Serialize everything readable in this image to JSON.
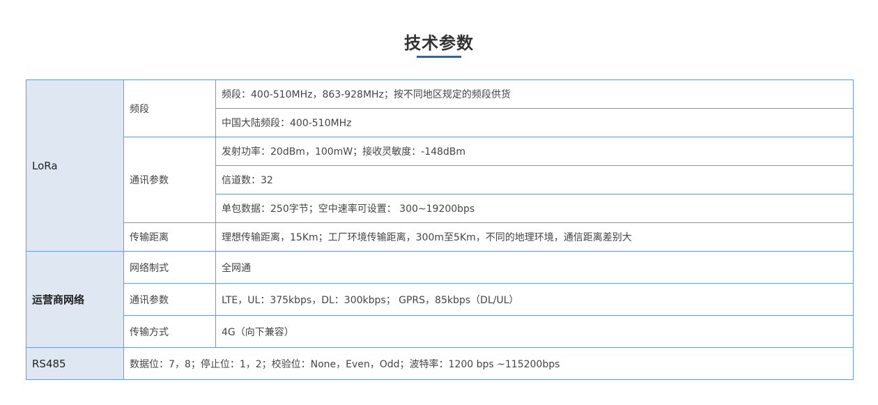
{
  "title": "技术参数",
  "table": {
    "lora": {
      "category": "LoRa",
      "band_label": "频段",
      "band_rows": [
        "频段：400-510MHz，863-928MHz；按不同地区规定的频段供货",
        "中国大陆频段：400-510MHz"
      ],
      "comm_label": "通讯参数",
      "comm_rows": [
        "发射功率：20dBm，100mW；接收灵敏度：-148dBm",
        "信道数：32",
        "单包数据：250字节；空中速率可设置： 300~19200bps"
      ],
      "distance_label": "传输距离",
      "distance_value": "理想传输距离，15Km；工厂环境传输距离，300m至5Km，不同的地理环境，通信距离差别大"
    },
    "carrier": {
      "category": "运营商网络",
      "rows": [
        {
          "label": "网络制式",
          "value": "全网通"
        },
        {
          "label": "通讯参数",
          "value": "LTE，UL：375kbps，DL：300kbps； GPRS，85kbps（DL/UL）"
        },
        {
          "label": "传输方式",
          "value": "4G（向下兼容）"
        }
      ]
    },
    "rs485": {
      "category": "RS485",
      "value": "数据位：7，8；停止位：1，2；校验位：None，Even，Odd；波特率：1200 bps ~115200bps"
    }
  }
}
